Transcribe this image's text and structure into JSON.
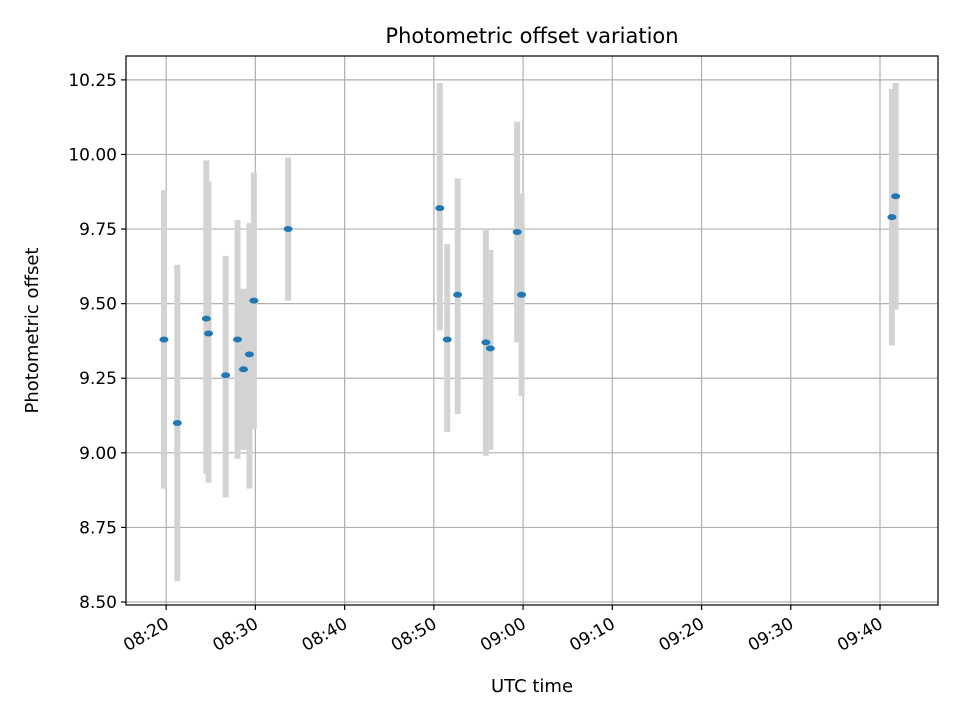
{
  "chart_data": {
    "type": "scatter",
    "title": "Photometric offset variation",
    "xlabel": "UTC time",
    "ylabel": "Photometric offset",
    "x_is_time": true,
    "xlim": [
      "08:15:30",
      "09:46:30"
    ],
    "ylim": [
      8.49,
      10.33
    ],
    "xticks": [
      "08:20",
      "08:30",
      "08:40",
      "08:50",
      "09:00",
      "09:10",
      "09:20",
      "09:30",
      "09:40"
    ],
    "yticks": [
      "8.50",
      "8.75",
      "9.00",
      "9.25",
      "9.50",
      "9.75",
      "10.00",
      "10.25"
    ],
    "grid": true,
    "marker_color": "#1f77b4",
    "errorbar_color": "#d3d3d3",
    "points": [
      {
        "x": "08:19:45",
        "y": 9.38,
        "yerr_low": 8.88,
        "yerr_high": 9.88
      },
      {
        "x": "08:21:15",
        "y": 9.1,
        "yerr_low": 8.57,
        "yerr_high": 9.63
      },
      {
        "x": "08:24:30",
        "y": 9.45,
        "yerr_low": 8.93,
        "yerr_high": 9.98
      },
      {
        "x": "08:24:45",
        "y": 9.4,
        "yerr_low": 8.9,
        "yerr_high": 9.91
      },
      {
        "x": "08:26:40",
        "y": 9.26,
        "yerr_low": 8.85,
        "yerr_high": 9.66
      },
      {
        "x": "08:28:00",
        "y": 9.38,
        "yerr_low": 8.98,
        "yerr_high": 9.78
      },
      {
        "x": "08:28:40",
        "y": 9.28,
        "yerr_low": 9.01,
        "yerr_high": 9.55
      },
      {
        "x": "08:29:20",
        "y": 9.33,
        "yerr_low": 8.88,
        "yerr_high": 9.77
      },
      {
        "x": "08:29:50",
        "y": 9.51,
        "yerr_low": 9.08,
        "yerr_high": 9.94
      },
      {
        "x": "08:33:40",
        "y": 9.75,
        "yerr_low": 9.51,
        "yerr_high": 9.99
      },
      {
        "x": "08:50:40",
        "y": 9.82,
        "yerr_low": 9.41,
        "yerr_high": 10.24
      },
      {
        "x": "08:51:30",
        "y": 9.38,
        "yerr_low": 9.07,
        "yerr_high": 9.7
      },
      {
        "x": "08:52:40",
        "y": 9.53,
        "yerr_low": 9.13,
        "yerr_high": 9.92
      },
      {
        "x": "08:55:50",
        "y": 9.37,
        "yerr_low": 8.99,
        "yerr_high": 9.75
      },
      {
        "x": "08:56:20",
        "y": 9.35,
        "yerr_low": 9.01,
        "yerr_high": 9.68
      },
      {
        "x": "08:59:20",
        "y": 9.74,
        "yerr_low": 9.37,
        "yerr_high": 10.11
      },
      {
        "x": "08:59:50",
        "y": 9.53,
        "yerr_low": 9.19,
        "yerr_high": 9.87
      },
      {
        "x": "09:41:20",
        "y": 9.79,
        "yerr_low": 9.36,
        "yerr_high": 10.22
      },
      {
        "x": "09:41:45",
        "y": 9.86,
        "yerr_low": 9.48,
        "yerr_high": 10.24
      }
    ]
  }
}
